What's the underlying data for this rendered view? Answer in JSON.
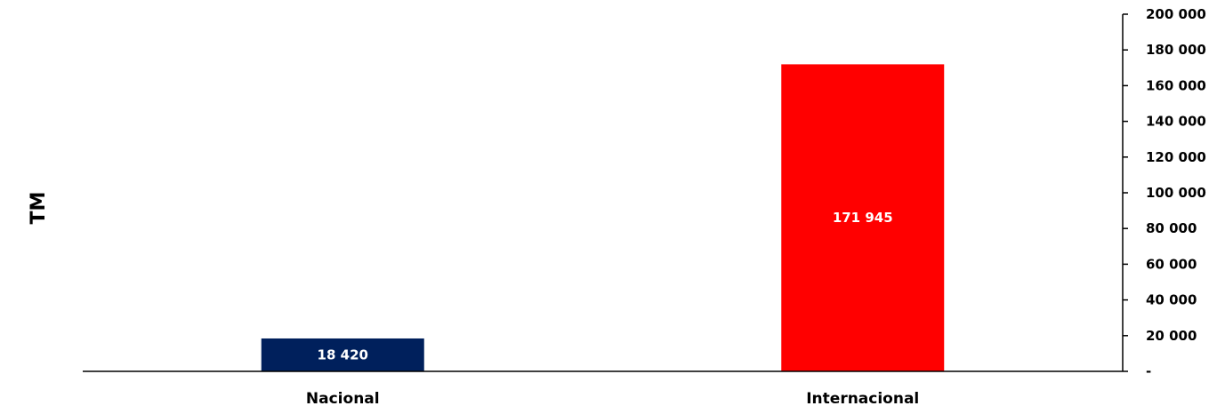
{
  "chart_data": {
    "type": "bar",
    "categories": [
      "Nacional",
      "Internacional"
    ],
    "values": [
      18420,
      171945
    ],
    "value_labels": [
      "18 420",
      "171 945"
    ],
    "colors": [
      "#00205c",
      "#ff0000"
    ],
    "ylabel": "TM",
    "ylim": [
      0,
      200000
    ],
    "y_ticks": [
      0,
      20000,
      40000,
      60000,
      80000,
      100000,
      120000,
      140000,
      160000,
      180000,
      200000
    ],
    "y_tick_labels": [
      "-",
      "20 000",
      "40 000",
      "60 000",
      "80 000",
      "100 000",
      "120 000",
      "140 000",
      "160 000",
      "180 000",
      "200 000"
    ],
    "y_axis_side": "right",
    "grid": false,
    "legend": "none"
  }
}
